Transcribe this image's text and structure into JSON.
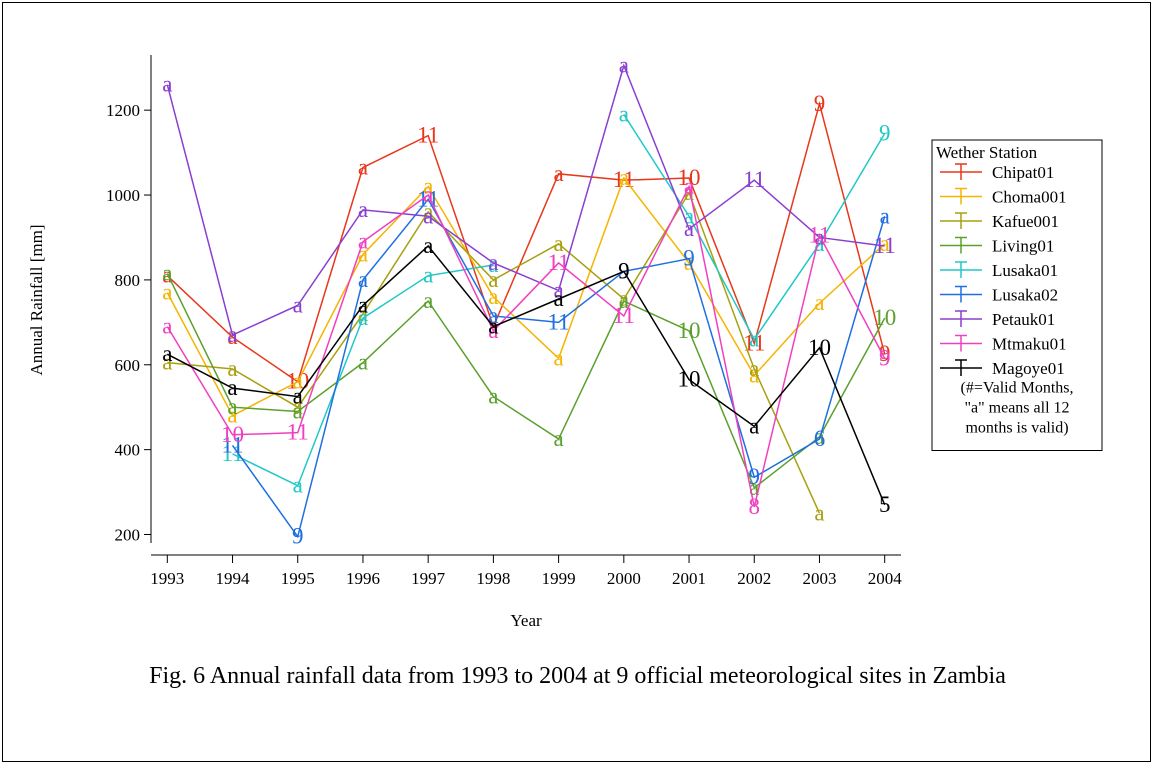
{
  "chart_data": {
    "type": "line",
    "x": [
      1993,
      1994,
      1995,
      1996,
      1997,
      1998,
      1999,
      2000,
      2001,
      2002,
      2003,
      2004
    ],
    "xlim": [
      1992.75,
      2004.25
    ],
    "xticks": [
      1993,
      1994,
      1995,
      1996,
      1997,
      1998,
      1999,
      2000,
      2001,
      2002,
      2003,
      2004
    ],
    "ylim": [
      180,
      1330
    ],
    "yticks": [
      200,
      400,
      600,
      800,
      1000,
      1200
    ],
    "xlabel": "Year",
    "ylabel": "Annual Rainfall [mm]",
    "legend_title": "Wether Station",
    "legend_note": [
      "(#=Valid Months,",
      "\"a\" means all 12",
      "months is valid)"
    ],
    "caption": "Fig. 6 Annual rainfall data from 1993 to 2004 at 9 official meteorological sites in Zambia",
    "series": [
      {
        "name": "Chipat01",
        "color": "#e8371a",
        "values": [
          810,
          665,
          560,
          1065,
          1140,
          690,
          1050,
          1035,
          1040,
          650,
          1215,
          625
        ],
        "point_labels": [
          "a",
          "a",
          "10",
          "a",
          "11",
          "a",
          "a",
          "11",
          "10",
          "11",
          "9",
          "9"
        ]
      },
      {
        "name": "Choma001",
        "color": "#f5b400",
        "values": [
          770,
          480,
          560,
          860,
          1020,
          760,
          615,
          1040,
          840,
          575,
          745,
          885
        ],
        "point_labels": [
          "a",
          "a",
          "a",
          "a",
          "a",
          "a",
          "a",
          "a",
          "a",
          "a",
          "a",
          "a"
        ]
      },
      {
        "name": "Kafue001",
        "color": "#a8a010",
        "values": [
          605,
          590,
          500,
          720,
          960,
          800,
          885,
          755,
          1005,
          590,
          250,
          null
        ],
        "point_labels": [
          "a",
          "a",
          "a",
          "a",
          "a",
          "a",
          "a",
          "a",
          "a",
          "a",
          "a",
          null
        ]
      },
      {
        "name": "Living01",
        "color": "#5aa02c",
        "values": [
          815,
          500,
          490,
          605,
          750,
          525,
          425,
          750,
          680,
          310,
          430,
          710
        ],
        "point_labels": [
          "a",
          "a",
          "a",
          "a",
          "a",
          "a",
          "a",
          "a",
          "10",
          "a",
          "a",
          "10"
        ]
      },
      {
        "name": "Lusaka01",
        "color": "#20c8c8",
        "values": [
          null,
          390,
          315,
          710,
          810,
          835,
          null,
          1190,
          950,
          660,
          885,
          1145
        ],
        "point_labels": [
          null,
          "11",
          "a",
          "a",
          "a",
          "a",
          null,
          "a",
          "a",
          "a",
          "a",
          "9"
        ]
      },
      {
        "name": "Lusaka02",
        "color": "#1f6fe0",
        "values": [
          null,
          410,
          195,
          800,
          990,
          715,
          700,
          820,
          850,
          335,
          425,
          950
        ],
        "point_labels": [
          null,
          "11",
          "9",
          "a",
          "11",
          "a",
          "11",
          "9",
          "9",
          "9",
          "6",
          "a"
        ]
      },
      {
        "name": "Petauk01",
        "color": "#8a3fd0",
        "values": [
          1260,
          670,
          740,
          965,
          950,
          840,
          775,
          1305,
          920,
          1035,
          900,
          880
        ],
        "point_labels": [
          "a",
          "a",
          "a",
          "a",
          "a",
          "a",
          "a",
          "a",
          "a",
          "11",
          "a",
          "11"
        ]
      },
      {
        "name": "Mtmaku01",
        "color": "#f040c0",
        "values": [
          690,
          435,
          440,
          890,
          1000,
          680,
          840,
          715,
          1020,
          265,
          905,
          615
        ],
        "point_labels": [
          "a",
          "10",
          "11",
          "a",
          "a",
          "a",
          "11",
          "11",
          "a",
          "8",
          "11",
          "9"
        ]
      },
      {
        "name": "Magoye01",
        "color": "#000000",
        "values": [
          625,
          545,
          525,
          740,
          880,
          690,
          755,
          820,
          565,
          455,
          640,
          270
        ],
        "point_labels": [
          "a",
          "a",
          "a",
          "a",
          "a",
          "a",
          "a",
          "9",
          "10",
          "a",
          "10",
          "5"
        ]
      }
    ]
  }
}
